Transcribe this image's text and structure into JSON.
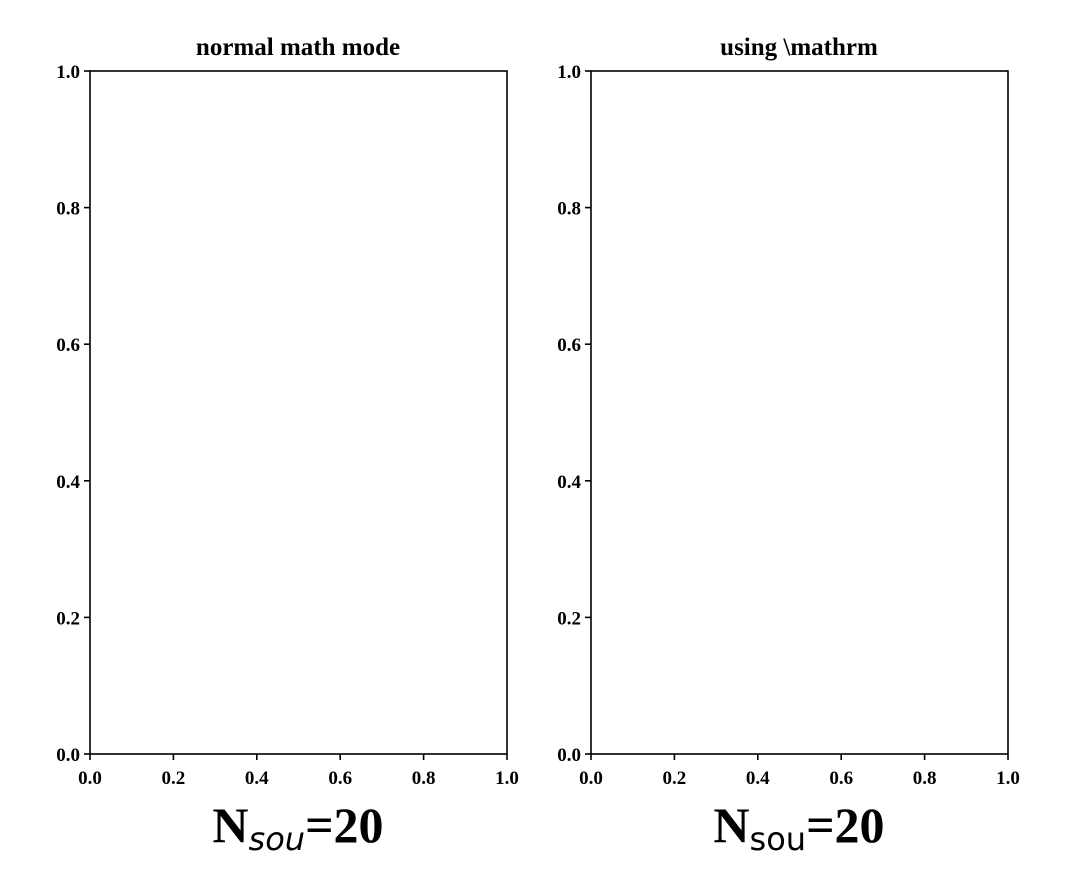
{
  "chart_data": [
    {
      "type": "line",
      "title": "normal math mode",
      "series": [],
      "xlim": [
        0.0,
        1.0
      ],
      "ylim": [
        0.0,
        1.0
      ],
      "xticks": [
        "0.0",
        "0.2",
        "0.4",
        "0.6",
        "0.8",
        "1.0"
      ],
      "yticks": [
        "0.0",
        "0.2",
        "0.4",
        "0.6",
        "0.8",
        "1.0"
      ],
      "xlabel": {
        "base": "N",
        "subscript": "sou",
        "subscript_style": "italic",
        "suffix": "=20"
      },
      "grid": false
    },
    {
      "type": "line",
      "title": "using \\mathrm",
      "series": [],
      "xlim": [
        0.0,
        1.0
      ],
      "ylim": [
        0.0,
        1.0
      ],
      "xticks": [
        "0.0",
        "0.2",
        "0.4",
        "0.6",
        "0.8",
        "1.0"
      ],
      "yticks": [
        "0.0",
        "0.2",
        "0.4",
        "0.6",
        "0.8",
        "1.0"
      ],
      "xlabel": {
        "base": "N",
        "subscript": "sou",
        "subscript_style": "upright",
        "suffix": "=20"
      },
      "grid": false
    }
  ]
}
